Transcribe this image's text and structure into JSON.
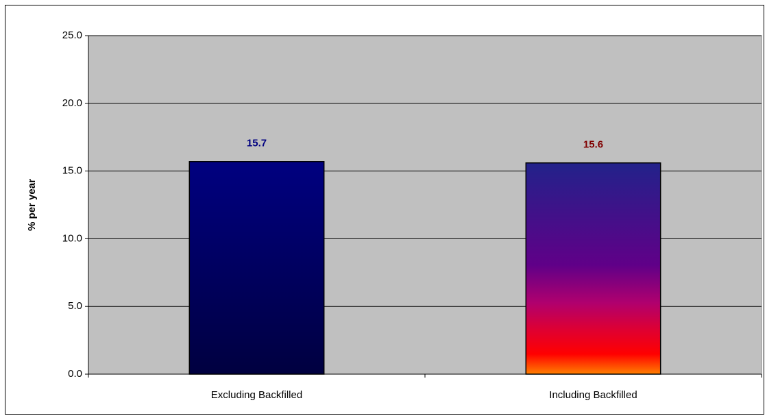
{
  "chart_data": {
    "type": "bar",
    "ylabel": "% per year",
    "categories": [
      "Excluding Backfilled",
      "Including Backfilled"
    ],
    "values": [
      15.7,
      15.6
    ],
    "bar_gradients": [
      [
        "#000080",
        "#000040"
      ],
      [
        "#22228a",
        "#600088",
        "#b0006e",
        "#e00030",
        "#ff0000",
        "#ff8000"
      ]
    ],
    "value_label_colors": [
      "#000080",
      "#800000"
    ],
    "ylim": [
      0,
      25
    ],
    "yticks": [
      {
        "value": 0,
        "label": "0.0"
      },
      {
        "value": 5,
        "label": "5.0"
      },
      {
        "value": 10,
        "label": "10.0"
      },
      {
        "value": 15,
        "label": "15.0"
      },
      {
        "value": 20,
        "label": "20.0"
      },
      {
        "value": 25,
        "label": "25.0"
      }
    ],
    "grid": true
  }
}
